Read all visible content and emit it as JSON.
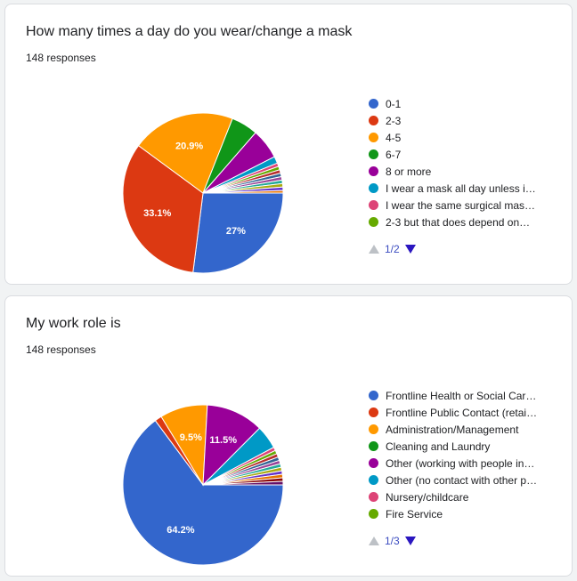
{
  "cards": [
    {
      "title": "How many times a day do you wear/change a mask",
      "responses": "148 responses",
      "page": "1/2",
      "chart_data": {
        "type": "pie",
        "slices": [
          {
            "label": "0-1",
            "value": 27.0,
            "color": "#3366cc",
            "display": "27%"
          },
          {
            "label": "2-3",
            "value": 33.1,
            "color": "#dc3912",
            "display": "33.1%"
          },
          {
            "label": "4-5",
            "value": 20.9,
            "color": "#ff9900",
            "display": "20.9%"
          },
          {
            "label": "6-7",
            "value": 5.4,
            "color": "#109618",
            "display": ""
          },
          {
            "label": "8 or more",
            "value": 6.1,
            "color": "#990099",
            "display": ""
          },
          {
            "label": "I wear a mask all day unless i…",
            "value": 1.4,
            "color": "#0099c6",
            "display": ""
          },
          {
            "label": "I wear the same surgical mas…",
            "value": 0.7,
            "color": "#dd4477",
            "display": ""
          },
          {
            "label": "2-3 but that does depend on…",
            "value": 0.7,
            "color": "#66aa00",
            "display": ""
          },
          {
            "label": "",
            "value": 0.7,
            "color": "#b82e2e",
            "display": ""
          },
          {
            "label": "",
            "value": 0.7,
            "color": "#316395",
            "display": ""
          },
          {
            "label": "",
            "value": 0.7,
            "color": "#994499",
            "display": ""
          },
          {
            "label": "",
            "value": 0.7,
            "color": "#22aa99",
            "display": ""
          },
          {
            "label": "",
            "value": 0.7,
            "color": "#aaaa11",
            "display": ""
          },
          {
            "label": "",
            "value": 0.7,
            "color": "#6633cc",
            "display": ""
          },
          {
            "label": "",
            "value": 0.5,
            "color": "#e67300",
            "display": ""
          }
        ]
      }
    },
    {
      "title": "My work role is",
      "responses": "148 responses",
      "page": "1/3",
      "chart_data": {
        "type": "pie",
        "slices": [
          {
            "label": "Frontline Health or Social Car…",
            "value": 64.2,
            "color": "#3366cc",
            "display": "64.2%"
          },
          {
            "label": "Frontline Public Contact (retai…",
            "value": 1.4,
            "color": "#dc3912",
            "display": ""
          },
          {
            "label": "Administration/Management",
            "value": 9.5,
            "color": "#ff9900",
            "display": "9.5%"
          },
          {
            "label": "Cleaning and Laundry",
            "value": 0.0,
            "color": "#109618",
            "display": ""
          },
          {
            "label": "Other (working with people in…",
            "value": 11.5,
            "color": "#990099",
            "display": "11.5%"
          },
          {
            "label": "Other (no contact with other p…",
            "value": 4.7,
            "color": "#0099c6",
            "display": ""
          },
          {
            "label": "Nursery/childcare",
            "value": 0.7,
            "color": "#dd4477",
            "display": ""
          },
          {
            "label": "Fire Service",
            "value": 0.7,
            "color": "#66aa00",
            "display": ""
          },
          {
            "label": "",
            "value": 0.7,
            "color": "#b82e2e",
            "display": ""
          },
          {
            "label": "",
            "value": 0.7,
            "color": "#316395",
            "display": ""
          },
          {
            "label": "",
            "value": 0.7,
            "color": "#994499",
            "display": ""
          },
          {
            "label": "",
            "value": 0.7,
            "color": "#22aa99",
            "display": ""
          },
          {
            "label": "",
            "value": 0.7,
            "color": "#aaaa11",
            "display": ""
          },
          {
            "label": "",
            "value": 0.7,
            "color": "#6633cc",
            "display": ""
          },
          {
            "label": "",
            "value": 0.7,
            "color": "#e67300",
            "display": ""
          },
          {
            "label": "",
            "value": 0.7,
            "color": "#8b0707",
            "display": ""
          },
          {
            "label": "",
            "value": 0.7,
            "color": "#651067",
            "display": ""
          }
        ]
      }
    }
  ]
}
